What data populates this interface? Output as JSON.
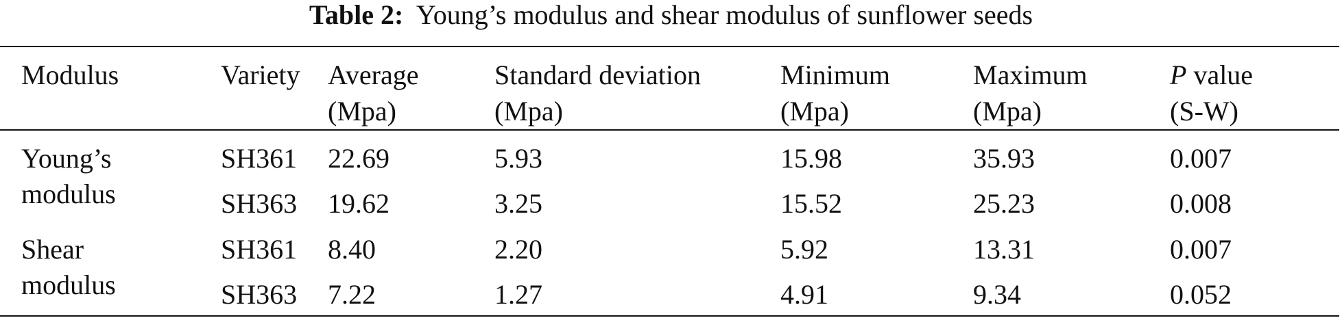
{
  "title": {
    "label": "Table 2:",
    "text": "Young’s modulus and shear modulus of sunflower seeds"
  },
  "table": {
    "header": [
      {
        "lines": [
          "Modulus"
        ]
      },
      {
        "lines": [
          "Variety"
        ]
      },
      {
        "lines": [
          "Average",
          "(Mpa)"
        ]
      },
      {
        "lines": [
          "Standard deviation",
          "(Mpa)"
        ]
      },
      {
        "lines": [
          "Minimum",
          "(Mpa)"
        ]
      },
      {
        "lines": [
          "Maximum",
          "(Mpa)"
        ]
      },
      {
        "italic": "P",
        "lines": [
          "value",
          "(S-W)"
        ]
      }
    ],
    "groups": [
      {
        "modulus": "Young’s modulus",
        "rows": [
          [
            "SH361",
            "22.69",
            "5.93",
            "15.98",
            "35.93",
            "0.007"
          ],
          [
            "SH363",
            "19.62",
            "3.25",
            "15.52",
            "25.23",
            "0.008"
          ]
        ]
      },
      {
        "modulus": "Shear modulus",
        "rows": [
          [
            "SH361",
            "8.40",
            "2.20",
            "5.92",
            "13.31",
            "0.007"
          ],
          [
            "SH363",
            "7.22",
            "1.27",
            "4.91",
            "9.34",
            "0.052"
          ]
        ]
      }
    ]
  }
}
